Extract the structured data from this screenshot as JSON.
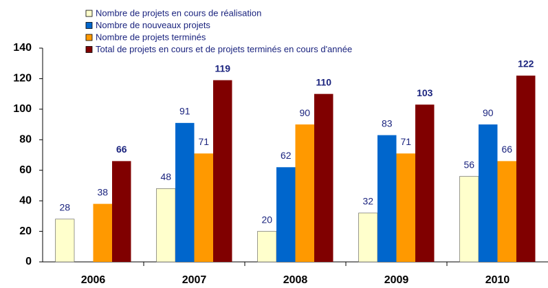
{
  "chart_data": {
    "type": "bar",
    "categories": [
      "2006",
      "2007",
      "2008",
      "2009",
      "2010"
    ],
    "series": [
      {
        "name": "Nombre de projets en cours de réalisation",
        "color": "#ffffcc",
        "values": [
          28,
          48,
          20,
          32,
          56
        ]
      },
      {
        "name": "Nombre de nouveaux projets",
        "color": "#0066cc",
        "values": [
          null,
          91,
          62,
          83,
          90
        ]
      },
      {
        "name": "Nombre de projets terminés",
        "color": "#ff9900",
        "values": [
          38,
          71,
          90,
          71,
          66
        ]
      },
      {
        "name": "Total de projets en cours et de projets terminés en cours d'année",
        "color": "#800000",
        "values": [
          66,
          119,
          110,
          103,
          122
        ]
      }
    ],
    "ylim": [
      0,
      140
    ],
    "yticks": [
      0,
      20,
      40,
      60,
      80,
      100,
      120,
      140
    ],
    "grid": false
  }
}
